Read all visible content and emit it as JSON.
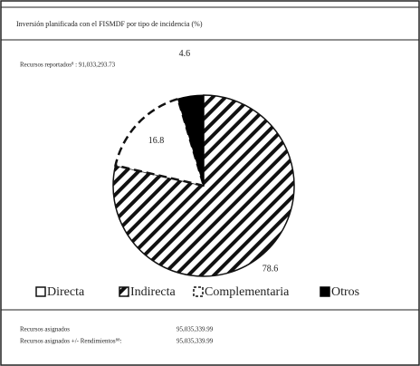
{
  "header": {
    "title": "Inversión planificada con el FISMDF por tipo de incidencia (%)"
  },
  "chart_data": {
    "type": "pie",
    "note": "Recursos reportados⁸ : 91,033,293.73",
    "categories": [
      "Directa",
      "Indirecta",
      "Complementaria",
      "Otros"
    ],
    "values": [
      0,
      78.6,
      16.8,
      4.6
    ],
    "fills": [
      "white",
      "hatch",
      "dashed",
      "black"
    ]
  },
  "footer": {
    "rows": [
      [
        "Recursos asignados",
        "95,035,339.99"
      ],
      [
        "Recursos asignados +/- Rendimientos⁸⁸:",
        "95,035,339.99"
      ]
    ]
  }
}
